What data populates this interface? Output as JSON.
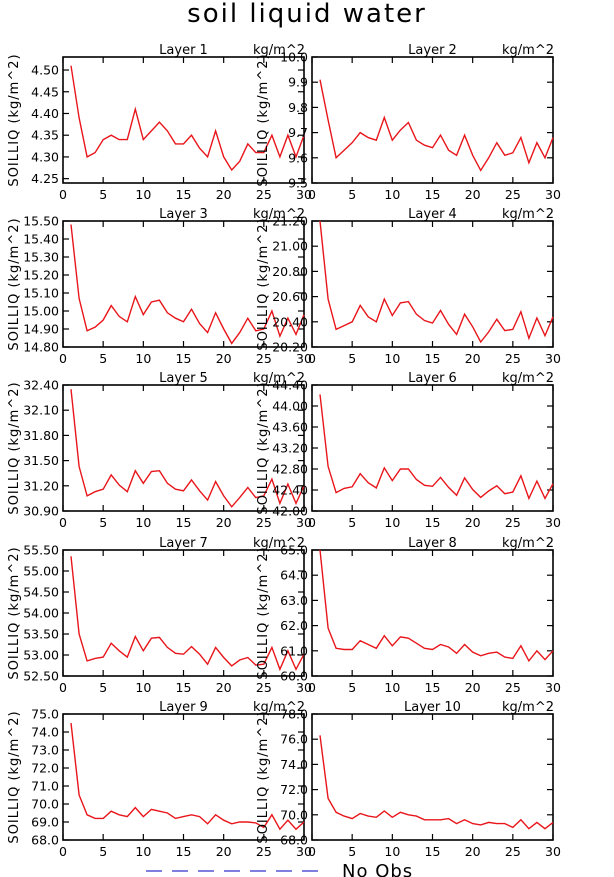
{
  "title": "soil liquid water",
  "legend": {
    "label": "No Obs",
    "color": "#3333cc"
  },
  "series_color": "#e8161b",
  "chart_data": [
    {
      "type": "line",
      "title": "Layer 1",
      "unit": "kg/m^2",
      "ylabel": "SOILLIQ  (kg/m^2)",
      "ylim": [
        4.24,
        4.53
      ],
      "yticks": [
        4.25,
        4.3,
        4.35,
        4.4,
        4.45,
        4.5
      ],
      "decimals": 2,
      "xlim": [
        0,
        30
      ],
      "xticks": [
        0,
        5,
        10,
        15,
        20,
        25,
        30
      ],
      "x": [
        1,
        2,
        3,
        4,
        5,
        6,
        7,
        8,
        9,
        10,
        11,
        12,
        13,
        14,
        15,
        16,
        17,
        18,
        19,
        20,
        21,
        22,
        23,
        24,
        25,
        26,
        27,
        28,
        29,
        30
      ],
      "y": [
        4.51,
        4.39,
        4.3,
        4.31,
        4.34,
        4.35,
        4.34,
        4.34,
        4.41,
        4.34,
        4.36,
        4.38,
        4.36,
        4.33,
        4.33,
        4.35,
        4.32,
        4.3,
        4.36,
        4.3,
        4.27,
        4.29,
        4.33,
        4.31,
        4.31,
        4.35,
        4.3,
        4.35,
        4.3,
        4.35
      ]
    },
    {
      "type": "line",
      "title": "Layer 2",
      "unit": "kg/m^2",
      "ylabel": "SOILLIQ  (kg/m^2)",
      "ylim": [
        9.5,
        10.0
      ],
      "yticks": [
        9.5,
        9.6,
        9.7,
        9.8,
        9.9,
        10.0
      ],
      "decimals": 1,
      "xlim": [
        0,
        30
      ],
      "xticks": [
        0,
        5,
        10,
        15,
        20,
        25,
        30
      ],
      "x": [
        1,
        2,
        3,
        4,
        5,
        6,
        7,
        8,
        9,
        10,
        11,
        12,
        13,
        14,
        15,
        16,
        17,
        18,
        19,
        20,
        21,
        22,
        23,
        24,
        25,
        26,
        27,
        28,
        29,
        30
      ],
      "y": [
        9.91,
        9.75,
        9.6,
        9.63,
        9.66,
        9.7,
        9.68,
        9.67,
        9.76,
        9.67,
        9.71,
        9.74,
        9.67,
        9.65,
        9.64,
        9.69,
        9.63,
        9.61,
        9.69,
        9.61,
        9.55,
        9.6,
        9.66,
        9.61,
        9.62,
        9.68,
        9.58,
        9.66,
        9.6,
        9.68
      ]
    },
    {
      "type": "line",
      "title": "Layer 3",
      "unit": "kg/m^2",
      "ylabel": "SOILLIQ  (kg/m^2)",
      "ylim": [
        14.8,
        15.5
      ],
      "yticks": [
        14.8,
        14.9,
        15.0,
        15.1,
        15.2,
        15.3,
        15.4,
        15.5
      ],
      "decimals": 2,
      "xlim": [
        0,
        30
      ],
      "xticks": [
        0,
        5,
        10,
        15,
        20,
        25,
        30
      ],
      "x": [
        1,
        2,
        3,
        4,
        5,
        6,
        7,
        8,
        9,
        10,
        11,
        12,
        13,
        14,
        15,
        16,
        17,
        18,
        19,
        20,
        21,
        22,
        23,
        24,
        25,
        26,
        27,
        28,
        29,
        30
      ],
      "y": [
        15.48,
        15.07,
        14.89,
        14.91,
        14.95,
        15.03,
        14.97,
        14.94,
        15.08,
        14.98,
        15.05,
        15.06,
        14.99,
        14.96,
        14.94,
        15.01,
        14.93,
        14.88,
        14.99,
        14.9,
        14.82,
        14.88,
        14.96,
        14.89,
        14.9,
        15.0,
        14.86,
        14.96,
        14.87,
        14.98
      ]
    },
    {
      "type": "line",
      "title": "Layer 4",
      "unit": "kg/m^2",
      "ylabel": "SOILLIQ  (kg/m^2)",
      "ylim": [
        20.2,
        21.2
      ],
      "yticks": [
        20.2,
        20.4,
        20.6,
        20.8,
        21.0,
        21.2
      ],
      "decimals": 2,
      "xlim": [
        0,
        30
      ],
      "xticks": [
        0,
        5,
        10,
        15,
        20,
        25,
        30
      ],
      "x": [
        1,
        2,
        3,
        4,
        5,
        6,
        7,
        8,
        9,
        10,
        11,
        12,
        13,
        14,
        15,
        16,
        17,
        18,
        19,
        20,
        21,
        22,
        23,
        24,
        25,
        26,
        27,
        28,
        29,
        30
      ],
      "y": [
        21.2,
        20.58,
        20.34,
        20.37,
        20.4,
        20.53,
        20.44,
        20.4,
        20.58,
        20.45,
        20.55,
        20.56,
        20.46,
        20.41,
        20.39,
        20.49,
        20.38,
        20.3,
        20.46,
        20.36,
        20.24,
        20.32,
        20.42,
        20.33,
        20.34,
        20.48,
        20.27,
        20.43,
        20.29,
        20.44
      ]
    },
    {
      "type": "line",
      "title": "Layer 5",
      "unit": "kg/m^2",
      "ylabel": "SOILLIQ  (kg/m^2)",
      "ylim": [
        30.9,
        32.4
      ],
      "yticks": [
        30.9,
        31.2,
        31.5,
        31.8,
        32.1,
        32.4
      ],
      "decimals": 2,
      "xlim": [
        0,
        30
      ],
      "xticks": [
        0,
        5,
        10,
        15,
        20,
        25,
        30
      ],
      "x": [
        1,
        2,
        3,
        4,
        5,
        6,
        7,
        8,
        9,
        10,
        11,
        12,
        13,
        14,
        15,
        16,
        17,
        18,
        19,
        20,
        21,
        22,
        23,
        24,
        25,
        26,
        27,
        28,
        29,
        30
      ],
      "y": [
        32.35,
        31.43,
        31.08,
        31.13,
        31.16,
        31.33,
        31.21,
        31.13,
        31.38,
        31.23,
        31.37,
        31.38,
        31.23,
        31.16,
        31.14,
        31.27,
        31.14,
        31.03,
        31.25,
        31.08,
        30.95,
        31.06,
        31.18,
        31.06,
        31.08,
        31.28,
        30.99,
        31.22,
        30.99,
        31.2
      ]
    },
    {
      "type": "line",
      "title": "Layer 6",
      "unit": "kg/m^2",
      "ylabel": "SOILLIQ  (kg/m^2)",
      "ylim": [
        42.0,
        44.4
      ],
      "yticks": [
        42.0,
        42.4,
        42.8,
        43.2,
        43.6,
        44.0,
        44.4
      ],
      "decimals": 2,
      "xlim": [
        0,
        30
      ],
      "xticks": [
        0,
        5,
        10,
        15,
        20,
        25,
        30
      ],
      "x": [
        1,
        2,
        3,
        4,
        5,
        6,
        7,
        8,
        9,
        10,
        11,
        12,
        13,
        14,
        15,
        16,
        17,
        18,
        19,
        20,
        21,
        22,
        23,
        24,
        25,
        26,
        27,
        28,
        29,
        30
      ],
      "y": [
        44.22,
        42.85,
        42.35,
        42.43,
        42.46,
        42.71,
        42.54,
        42.44,
        42.82,
        42.58,
        42.8,
        42.8,
        42.6,
        42.49,
        42.47,
        42.64,
        42.45,
        42.3,
        42.63,
        42.41,
        42.26,
        42.38,
        42.48,
        42.33,
        42.36,
        42.67,
        42.24,
        42.57,
        42.24,
        42.52
      ]
    },
    {
      "type": "line",
      "title": "Layer 7",
      "unit": "kg/m^2",
      "ylabel": "SOILLIQ  (kg/m^2)",
      "ylim": [
        52.5,
        55.5
      ],
      "yticks": [
        52.5,
        53.0,
        53.5,
        54.0,
        54.5,
        55.0,
        55.5
      ],
      "decimals": 2,
      "xlim": [
        0,
        30
      ],
      "xticks": [
        0,
        5,
        10,
        15,
        20,
        25,
        30
      ],
      "x": [
        1,
        2,
        3,
        4,
        5,
        6,
        7,
        8,
        9,
        10,
        11,
        12,
        13,
        14,
        15,
        16,
        17,
        18,
        19,
        20,
        21,
        22,
        23,
        24,
        25,
        26,
        27,
        28,
        29,
        30
      ],
      "y": [
        55.35,
        53.5,
        52.86,
        52.92,
        52.95,
        53.28,
        53.1,
        52.95,
        53.44,
        53.1,
        53.4,
        53.42,
        53.18,
        53.04,
        53.02,
        53.2,
        53.02,
        52.78,
        53.18,
        52.94,
        52.74,
        52.88,
        52.94,
        52.76,
        52.78,
        53.18,
        52.66,
        53.1,
        52.66,
        53.02
      ]
    },
    {
      "type": "line",
      "title": "Layer 8",
      "unit": "kg/m^2",
      "ylabel": "SOILLIQ  (kg/m^2)",
      "ylim": [
        60.0,
        65.0
      ],
      "yticks": [
        60.0,
        61.0,
        62.0,
        63.0,
        64.0,
        65.0
      ],
      "decimals": 1,
      "xlim": [
        0,
        30
      ],
      "xticks": [
        0,
        5,
        10,
        15,
        20,
        25,
        30
      ],
      "x": [
        1,
        2,
        3,
        4,
        5,
        6,
        7,
        8,
        9,
        10,
        11,
        12,
        13,
        14,
        15,
        16,
        17,
        18,
        19,
        20,
        21,
        22,
        23,
        24,
        25,
        26,
        27,
        28,
        29,
        30
      ],
      "y": [
        65.0,
        61.9,
        61.1,
        61.05,
        61.05,
        61.4,
        61.25,
        61.1,
        61.6,
        61.2,
        61.55,
        61.5,
        61.3,
        61.1,
        61.05,
        61.25,
        61.15,
        60.9,
        61.25,
        60.95,
        60.8,
        60.9,
        60.95,
        60.75,
        60.7,
        61.2,
        60.6,
        61.0,
        60.65,
        61.0
      ]
    },
    {
      "type": "line",
      "title": "Layer 9",
      "unit": "kg/m^2",
      "ylabel": "SOILLIQ  (kg/m^2)",
      "ylim": [
        68.0,
        75.0
      ],
      "yticks": [
        68.0,
        69.0,
        70.0,
        71.0,
        72.0,
        73.0,
        74.0,
        75.0
      ],
      "decimals": 1,
      "xlim": [
        0,
        30
      ],
      "xticks": [
        0,
        5,
        10,
        15,
        20,
        25,
        30
      ],
      "x": [
        1,
        2,
        3,
        4,
        5,
        6,
        7,
        8,
        9,
        10,
        11,
        12,
        13,
        14,
        15,
        16,
        17,
        18,
        19,
        20,
        21,
        22,
        23,
        24,
        25,
        26,
        27,
        28,
        29,
        30
      ],
      "y": [
        74.5,
        70.5,
        69.4,
        69.2,
        69.2,
        69.6,
        69.4,
        69.3,
        69.8,
        69.3,
        69.7,
        69.6,
        69.5,
        69.2,
        69.3,
        69.4,
        69.3,
        68.9,
        69.4,
        69.1,
        68.9,
        69.0,
        69.0,
        68.95,
        68.7,
        69.4,
        68.6,
        69.1,
        68.6,
        69.0
      ]
    },
    {
      "type": "line",
      "title": "Layer 10",
      "unit": "kg/m^2",
      "ylabel": "SOILLIQ  (kg/m^2)",
      "ylim": [
        68.0,
        78.0
      ],
      "yticks": [
        68.0,
        70.0,
        72.0,
        74.0,
        76.0,
        78.0
      ],
      "decimals": 1,
      "xlim": [
        0,
        30
      ],
      "xticks": [
        0,
        5,
        10,
        15,
        20,
        25,
        30
      ],
      "x": [
        1,
        2,
        3,
        4,
        5,
        6,
        7,
        8,
        9,
        10,
        11,
        12,
        13,
        14,
        15,
        16,
        17,
        18,
        19,
        20,
        21,
        22,
        23,
        24,
        25,
        26,
        27,
        28,
        29,
        30
      ],
      "y": [
        76.3,
        71.3,
        70.2,
        69.9,
        69.7,
        70.1,
        69.9,
        69.8,
        70.3,
        69.8,
        70.2,
        70.0,
        69.9,
        69.6,
        69.6,
        69.6,
        69.7,
        69.3,
        69.6,
        69.3,
        69.2,
        69.4,
        69.3,
        69.3,
        69.0,
        69.6,
        68.9,
        69.4,
        68.9,
        69.4
      ]
    }
  ]
}
